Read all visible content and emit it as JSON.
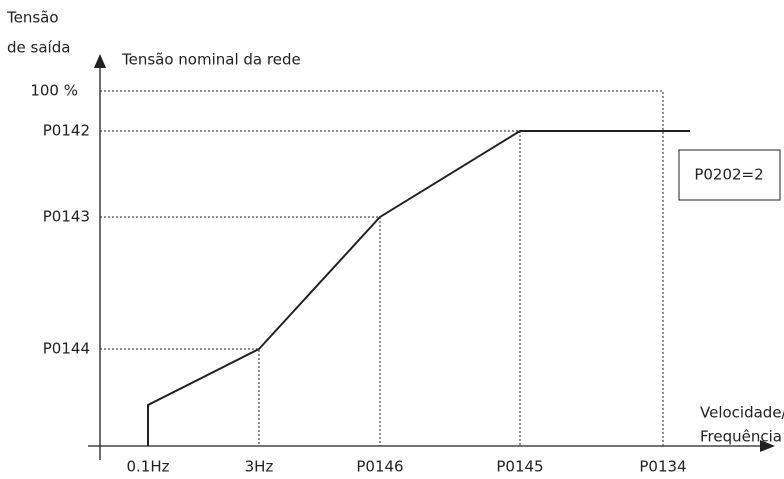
{
  "y_axis_title": [
    "Tensão",
    "de saída"
  ],
  "nominal_label": "Tensão nominal da rede",
  "y_levels": [
    "100 %",
    "P0142",
    "P0143",
    "P0144"
  ],
  "x_points": [
    "0.1Hz",
    "3Hz",
    "P0146",
    "P0145",
    "P0134"
  ],
  "x_axis_title": [
    "Velocidade/",
    "Frequência"
  ],
  "mode_box": "P0202=2"
}
